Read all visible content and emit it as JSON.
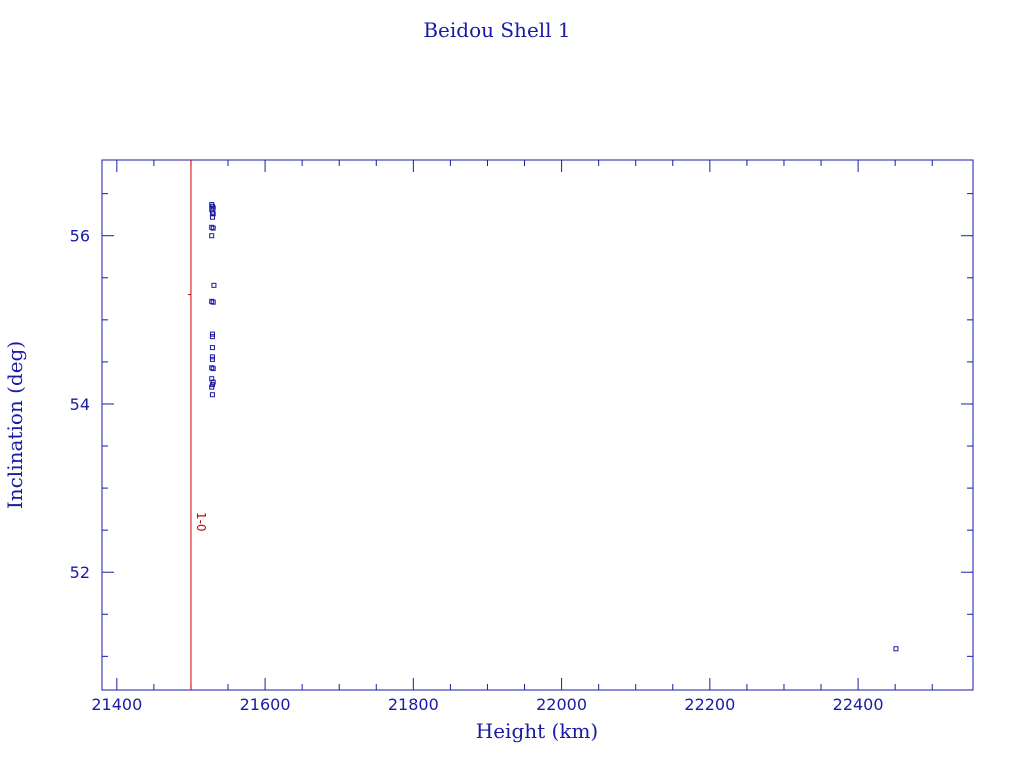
{
  "chart_data": {
    "type": "scatter",
    "title": "Beidou Shell 1",
    "xlabel": "Height (km)",
    "ylabel": "Inclination (deg)",
    "xlim": [
      21380,
      22555
    ],
    "ylim": [
      50.6,
      56.9
    ],
    "x_ticks": [
      21400,
      21600,
      21800,
      22000,
      22200,
      22400
    ],
    "x_tick_labels": [
      "21400",
      "21600",
      "21800",
      "22000",
      "22200",
      "22400"
    ],
    "y_ticks": [
      52,
      54,
      56
    ],
    "y_tick_labels": [
      "52",
      "54",
      "56"
    ],
    "grid": false,
    "series": [
      {
        "color": "#1a1aa6",
        "marker": "square",
        "points": [
          [
            21528,
            56.37
          ],
          [
            21529,
            56.35
          ],
          [
            21530,
            56.33
          ],
          [
            21528,
            56.31
          ],
          [
            21529,
            56.28
          ],
          [
            21530,
            56.26
          ],
          [
            21529,
            56.22
          ],
          [
            21528,
            56.1
          ],
          [
            21530,
            56.09
          ],
          [
            21528,
            56.0
          ],
          [
            21531,
            55.41
          ],
          [
            21528,
            55.22
          ],
          [
            21530,
            55.21
          ],
          [
            21529,
            54.83
          ],
          [
            21529,
            54.8
          ],
          [
            21529,
            54.67
          ],
          [
            21529,
            54.56
          ],
          [
            21529,
            54.53
          ],
          [
            21528,
            54.43
          ],
          [
            21530,
            54.42
          ],
          [
            21528,
            54.3
          ],
          [
            21530,
            54.26
          ],
          [
            21529,
            54.23
          ],
          [
            21528,
            54.2
          ],
          [
            21529,
            54.11
          ],
          [
            22451,
            51.09
          ]
        ]
      }
    ],
    "reference_line": {
      "x": 21500,
      "color": "#cc0000",
      "label": "1-0",
      "label_y": 52.6,
      "tick_y": 55.3
    }
  },
  "colors": {
    "axis": "#1a1aa6",
    "points": "#1a1aa6",
    "reference": "#cc0000"
  }
}
